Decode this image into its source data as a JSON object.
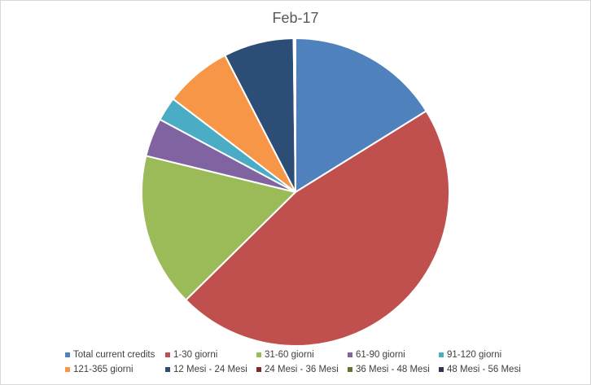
{
  "chart_data": {
    "type": "pie",
    "title": "Feb-17",
    "legend_position": "bottom",
    "start_angle_deg": 0,
    "slices": [
      {
        "label": "Total current credits",
        "value": 16.0,
        "color": "#4F81BD"
      },
      {
        "label": "1-30 giorni",
        "value": 46.0,
        "color": "#C0504D"
      },
      {
        "label": "31-60 giorni",
        "value": 16.0,
        "color": "#9BBB59"
      },
      {
        "label": "61-90 giorni",
        "value": 4.0,
        "color": "#8064A2"
      },
      {
        "label": "91-120 giorni",
        "value": 2.5,
        "color": "#4BACC6"
      },
      {
        "label": "121-365 giorni",
        "value": 7.0,
        "color": "#F79646"
      },
      {
        "label": "12 Mesi - 24 Mesi",
        "value": 7.3,
        "color": "#2C4D75"
      },
      {
        "label": "24 Mesi - 36 Mesi",
        "value": 0.1,
        "color": "#772C2A"
      },
      {
        "label": "36 Mesi - 48 Mesi",
        "value": 0.05,
        "color": "#5F7530"
      },
      {
        "label": "48 Mesi - 56 Mesi",
        "value": 0.05,
        "color": "#3A2F4E"
      }
    ]
  }
}
